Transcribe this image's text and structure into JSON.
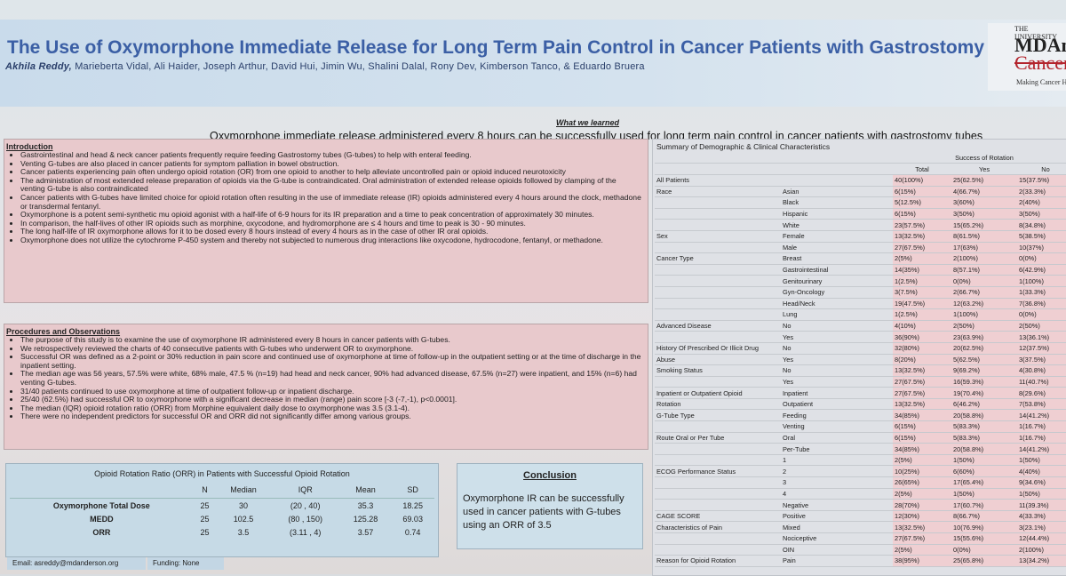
{
  "header": {
    "title": "The Use of Oxymorphone Immediate Release for Long Term Pain Control in Cancer Patients with Gastrostomy Tubes",
    "lead_author": "Akhila Reddy,",
    "authors": " Marieberta Vidal, Ali Haider, Joseph Arthur, David Hui, Jimin Wu, Shalini Dalal, Rony Dev, Kimberson Tanco, & Eduardo Bruera",
    "logo": {
      "line1": "THE UNIVERSITY",
      "line2": "MDAn",
      "line3": "Cancer",
      "line4": "Making Cancer H"
    }
  },
  "learned": {
    "label": "What we learned",
    "text": "Oxymorphone immediate release administered every 8 hours can be successfully used for long term pain control in cancer patients with gastrostomy tubes"
  },
  "intro": {
    "heading": "Introduction",
    "items": [
      "Gastrointestinal and head & neck cancer patients frequently require feeding Gastrostomy tubes (G-tubes) to help with enteral feeding.",
      "Venting G-tubes are also placed in cancer patients for symptom palliation in bowel obstruction.",
      "Cancer patients experiencing pain often undergo opioid rotation (OR) from one opioid to another to help alleviate uncontrolled pain or opioid induced neurotoxicity",
      "The administration of most extended release preparation of opioids via the G-tube is contraindicated. Oral administration of extended release opioids followed by clamping of the venting G-tube is also contraindicated",
      "Cancer patients with G-tubes have limited choice for opioid rotation often resulting in the use of immediate release (IR) opioids administered every 4 hours around the clock, methadone or transdermal fentanyl.",
      "Oxymorphone is a potent semi-synthetic mu opioid agonist with a half-life of 6-9 hours for its IR preparation and a time to peak concentration of approximately 30 minutes.",
      "In comparison, the half-lives of other IR opioids such as morphine, oxycodone, and hydromorphone are ≤ 4 hours and time to peak is 30 - 90 minutes.",
      "The long half-life of IR oxymorphone allows for it to be dosed every 8 hours instead of every 4 hours as in the case of other IR oral opioids.",
      "Oxymorphone does not utilize the cytochrome P-450 system and thereby not subjected to numerous drug interactions like oxycodone, hydrocodone, fentanyl, or methadone."
    ]
  },
  "procedures": {
    "heading": "Procedures and Observations",
    "items": [
      "The purpose of this study is to examine the use of oxymorphone IR administered every 8 hours in cancer patients with G-tubes.",
      "We retrospectively reviewed the charts of 40 consecutive patients with G-tubes who underwent OR to oxymorphone.",
      "Successful OR was defined as a 2-point or 30% reduction in pain score and continued use of oxymorphone at time of follow-up in the outpatient setting or at the time of discharge in the inpatient setting.",
      "The median age was 56 years, 57.5% were white, 68% male, 47.5 % (n=19) had head and neck cancer, 90% had advanced disease, 67.5% (n=27) were inpatient, and 15% (n=6) had venting G-tubes.",
      "31/40 patients continued to use oxymorphone at time of outpatient follow-up or inpatient discharge.",
      "25/40 (62.5%) had successful OR to oxymorphone with a significant decrease in median (range) pain score [-3 (-7,-1), p<0.0001].",
      "The median (IQR) opioid rotation ratio (ORR) from Morphine equivalent daily dose to oxymorphone was 3.5 (3.1-4).",
      "There were no independent predictors for successful OR and ORR did not significantly differ among various groups."
    ]
  },
  "orr": {
    "title": "Opioid Rotation Ratio (ORR) in Patients with Successful Opioid Rotation",
    "columns": [
      "",
      "N",
      "Median",
      "IQR",
      "Mean",
      "SD"
    ],
    "rows": [
      [
        "Oxymorphone Total Dose",
        "25",
        "30",
        "(20 , 40)",
        "35.3",
        "18.25"
      ],
      [
        "MEDD",
        "25",
        "102.5",
        "(80 , 150)",
        "125.28",
        "69.03"
      ],
      [
        "ORR",
        "25",
        "3.5",
        "(3.11 , 4)",
        "3.57",
        "0.74"
      ]
    ]
  },
  "footer": {
    "email": "Email: asreddy@mdanderson.org",
    "funding": "Funding: None"
  },
  "conclusion": {
    "heading": "Conclusion",
    "text": "Oxymorphone IR can be successfully used in cancer patients with G-tubes using an ORR of 3.5"
  },
  "demographics": {
    "title": "Summary of Demographic & Clinical Characteristics",
    "header1": [
      "",
      "",
      "",
      "Success of Rotation",
      ""
    ],
    "header2": [
      "",
      "",
      "Total",
      "Yes",
      "No"
    ],
    "rows": [
      [
        "All Patients",
        "",
        "40(100%)",
        "25(62.5%)",
        "15(37.5%)"
      ],
      [
        "Race",
        "Asian",
        "6(15%)",
        "4(66.7%)",
        "2(33.3%)"
      ],
      [
        "",
        "Black",
        "5(12.5%)",
        "3(60%)",
        "2(40%)"
      ],
      [
        "",
        "Hispanic",
        "6(15%)",
        "3(50%)",
        "3(50%)"
      ],
      [
        "",
        "White",
        "23(57.5%)",
        "15(65.2%)",
        "8(34.8%)"
      ],
      [
        "Sex",
        "Female",
        "13(32.5%)",
        "8(61.5%)",
        "5(38.5%)"
      ],
      [
        "",
        "Male",
        "27(67.5%)",
        "17(63%)",
        "10(37%)"
      ],
      [
        "Cancer Type",
        "Breast",
        "2(5%)",
        "2(100%)",
        "0(0%)"
      ],
      [
        "",
        "Gastrointestinal",
        "14(35%)",
        "8(57.1%)",
        "6(42.9%)"
      ],
      [
        "",
        "Genitourinary",
        "1(2.5%)",
        "0(0%)",
        "1(100%)"
      ],
      [
        "",
        "Gyn-Oncology",
        "3(7.5%)",
        "2(66.7%)",
        "1(33.3%)"
      ],
      [
        "",
        "Head/Neck",
        "19(47.5%)",
        "12(63.2%)",
        "7(36.8%)"
      ],
      [
        "",
        "Lung",
        "1(2.5%)",
        "1(100%)",
        "0(0%)"
      ],
      [
        "Advanced Disease",
        "No",
        "4(10%)",
        "2(50%)",
        "2(50%)"
      ],
      [
        "",
        "Yes",
        "36(90%)",
        "23(63.9%)",
        "13(36.1%)"
      ],
      [
        "History Of Prescribed Or Illicit Drug",
        "No",
        "32(80%)",
        "20(62.5%)",
        "12(37.5%)"
      ],
      [
        "Abuse",
        "Yes",
        "8(20%)",
        "5(62.5%)",
        "3(37.5%)"
      ],
      [
        "Smoking Status",
        "No",
        "13(32.5%)",
        "9(69.2%)",
        "4(30.8%)"
      ],
      [
        "",
        "Yes",
        "27(67.5%)",
        "16(59.3%)",
        "11(40.7%)"
      ],
      [
        "Inpatient or Outpatient Opioid",
        "Inpatient",
        "27(67.5%)",
        "19(70.4%)",
        "8(29.6%)"
      ],
      [
        "Rotation",
        "Outpatient",
        "13(32.5%)",
        "6(46.2%)",
        "7(53.8%)"
      ],
      [
        "G-Tube Type",
        "Feeding",
        "34(85%)",
        "20(58.8%)",
        "14(41.2%)"
      ],
      [
        "",
        "Venting",
        "6(15%)",
        "5(83.3%)",
        "1(16.7%)"
      ],
      [
        "Route Oral or Per Tube",
        "Oral",
        "6(15%)",
        "5(83.3%)",
        "1(16.7%)"
      ],
      [
        "",
        "Per-Tube",
        "34(85%)",
        "20(58.8%)",
        "14(41.2%)"
      ],
      [
        "",
        "1",
        "2(5%)",
        "1(50%)",
        "1(50%)"
      ],
      [
        "ECOG Performance Status",
        "2",
        "10(25%)",
        "6(60%)",
        "4(40%)"
      ],
      [
        "",
        "3",
        "26(65%)",
        "17(65.4%)",
        "9(34.6%)"
      ],
      [
        "",
        "4",
        "2(5%)",
        "1(50%)",
        "1(50%)"
      ],
      [
        "",
        "Negative",
        "28(70%)",
        "17(60.7%)",
        "11(39.3%)"
      ],
      [
        "CAGE SCORE",
        "Positive",
        "12(30%)",
        "8(66.7%)",
        "4(33.3%)"
      ],
      [
        "Characteristics of Pain",
        "Mixed",
        "13(32.5%)",
        "10(76.9%)",
        "3(23.1%)"
      ],
      [
        "",
        "Nociceptive",
        "27(67.5%)",
        "15(55.6%)",
        "12(44.4%)"
      ],
      [
        "",
        "OIN",
        "2(5%)",
        "0(0%)",
        "2(100%)"
      ],
      [
        "Reason for Opioid Rotation",
        "Pain",
        "38(95%)",
        "25(65.8%)",
        "13(34.2%)"
      ]
    ]
  }
}
